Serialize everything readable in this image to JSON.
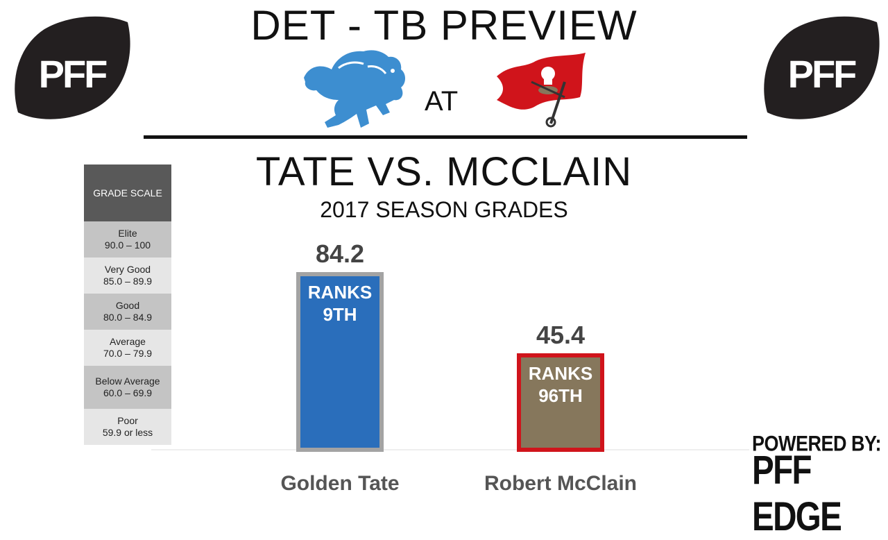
{
  "header": {
    "title": "DET - TB PREVIEW",
    "at_label": "AT",
    "logos": [
      "detroit-lions-logo",
      "tampa-bay-buccaneers-logo"
    ]
  },
  "brand": {
    "logo_text": "PFF",
    "powered_by": "POWERED BY:",
    "edge_name": "PFF EDGE"
  },
  "grade_scale": {
    "title": "GRADE SCALE",
    "rows": [
      {
        "label": "Elite",
        "range": "90.0 – 100",
        "tone": "dark"
      },
      {
        "label": "Very Good",
        "range": "85.0 – 89.9",
        "tone": "light"
      },
      {
        "label": "Good",
        "range": "80.0 – 84.9",
        "tone": "dark"
      },
      {
        "label": "Average",
        "range": "70.0 – 79.9",
        "tone": "light"
      },
      {
        "label": "Below Average",
        "range": "60.0 – 69.9",
        "tone": "dark"
      },
      {
        "label": "Poor",
        "range": "59.9 or less",
        "tone": "light"
      }
    ]
  },
  "chart_data": {
    "type": "bar",
    "title": "TATE VS. MCCLAIN",
    "subtitle": "2017 SEASON GRADES",
    "categories": [
      "Golden Tate",
      "Robert McClain"
    ],
    "values": [
      84.2,
      45.4
    ],
    "value_labels": [
      "84.2",
      "45.4"
    ],
    "rank_labels": [
      [
        "RANKS",
        "9TH"
      ],
      [
        "RANKS",
        "96TH"
      ]
    ],
    "colors": {
      "fill": [
        "#2a6ebb",
        "#86775c"
      ],
      "border": [
        "#a3a3a3",
        "#d0141b"
      ]
    },
    "xlabel": "",
    "ylabel": "",
    "ylim": [
      0,
      100
    ],
    "grid": false,
    "legend": "none"
  }
}
